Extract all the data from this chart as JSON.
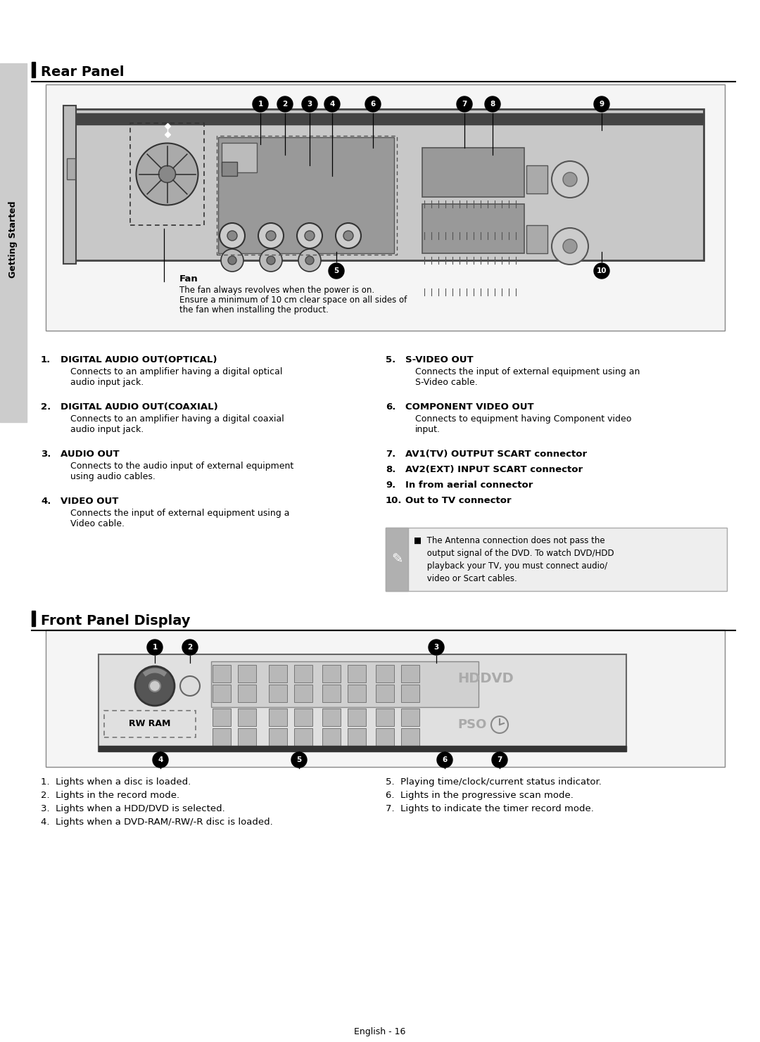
{
  "page_bg": "#ffffff",
  "sidebar_bg": "#cccccc",
  "sidebar_text": "Getting Started",
  "section1_title": "Rear Panel",
  "section2_title": "Front Panel Display",
  "section_title_fontsize": 14,
  "body_fontsize": 9.5,
  "footer_text": "English - 16",
  "rear_panel_items_left": [
    [
      "1.",
      "DIGITAL AUDIO OUT(OPTICAL)",
      "Connects to an amplifier having a digital optical\naudio input jack."
    ],
    [
      "2.",
      "DIGITAL AUDIO OUT(COAXIAL)",
      "Connects to an amplifier having a digital coaxial\naudio input jack."
    ],
    [
      "3.",
      "AUDIO OUT",
      "Connects to the audio input of external equipment\nusing audio cables."
    ],
    [
      "4.",
      "VIDEO OUT",
      "Connects the input of external equipment using a\nVideo cable."
    ]
  ],
  "rear_panel_items_right": [
    [
      "5.",
      "S-VIDEO OUT",
      "Connects the input of external equipment using an\nS-Video cable."
    ],
    [
      "6.",
      "COMPONENT VIDEO OUT",
      "Connects to equipment having Component video\ninput."
    ],
    [
      "7.",
      "AV1(TV) OUTPUT SCART connector",
      ""
    ],
    [
      "8.",
      "AV2(EXT) INPUT SCART connector",
      ""
    ],
    [
      "9.",
      "In from aerial connector",
      ""
    ],
    [
      "10.",
      "Out to TV connector",
      ""
    ]
  ],
  "note_lines": [
    "■  The Antenna connection does not pass the",
    "     output signal of the DVD. To watch DVD/HDD",
    "     playback your TV, you must connect audio/",
    "     video or Scart cables."
  ],
  "front_items_left": [
    "1.  Lights when a disc is loaded.",
    "2.  Lights in the record mode.",
    "3.  Lights when a HDD/DVD is selected.",
    "4.  Lights when a DVD-RAM/-RW/-R disc is loaded."
  ],
  "front_items_right": [
    "5.  Playing time/clock/current status indicator.",
    "6.  Lights in the progressive scan mode.",
    "7.  Lights to indicate the timer record mode."
  ]
}
